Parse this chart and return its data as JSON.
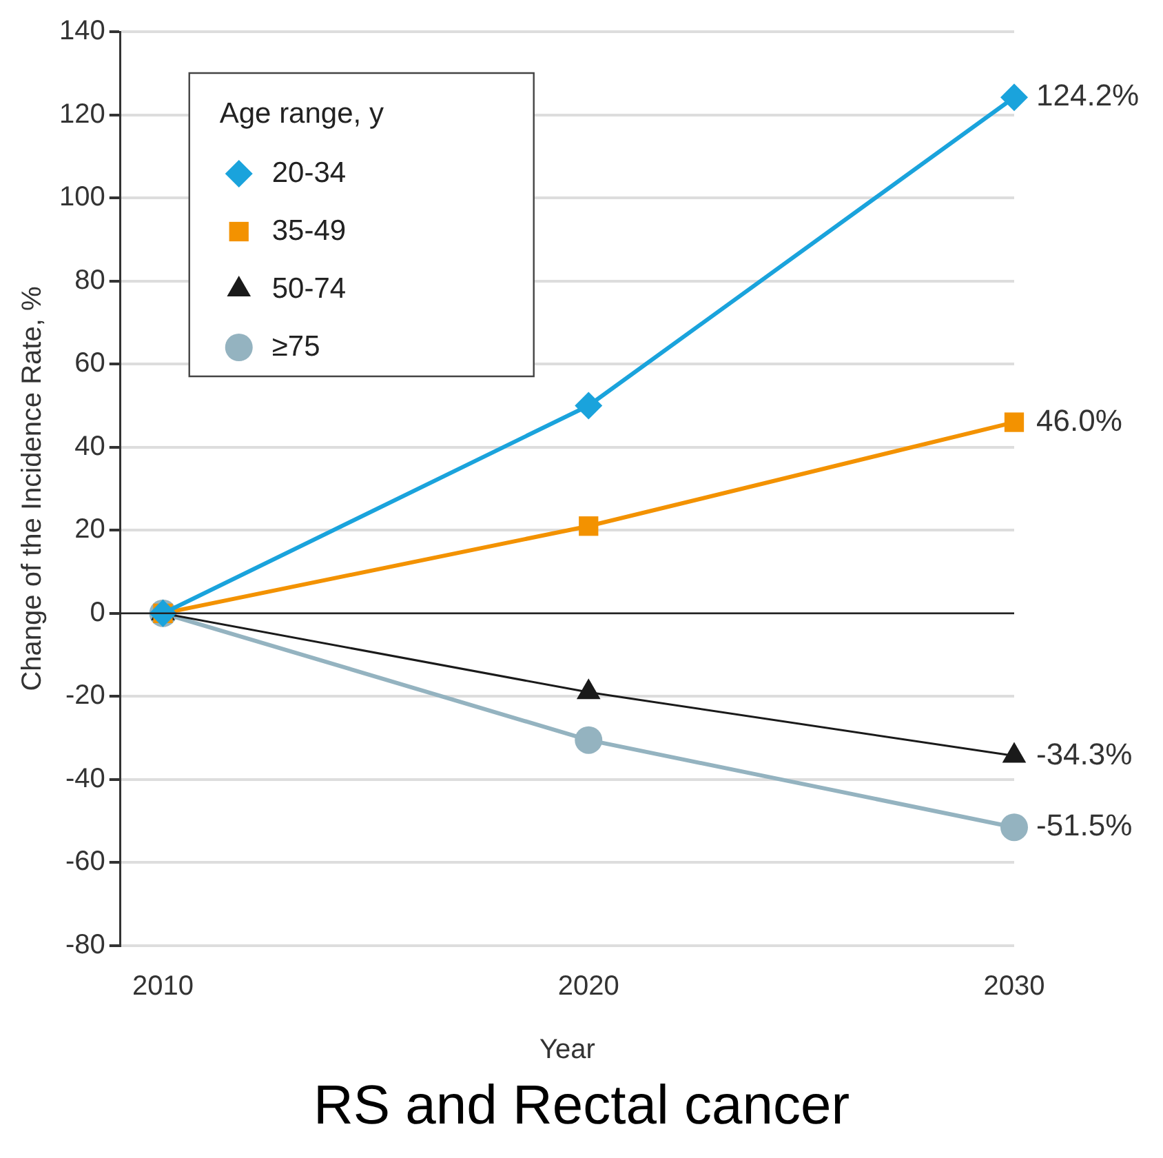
{
  "chart_data": {
    "type": "line",
    "xlabel": "Year",
    "ylabel": "Change of the Incidence Rate, %",
    "legend_title": "Age range, y",
    "annotations": [
      "RS and Rectal cancer"
    ],
    "x": [
      2010,
      2020,
      2030
    ],
    "xlim": [
      2009,
      2030
    ],
    "xticks": [
      2010,
      2020,
      2030
    ],
    "ylim": [
      -80,
      140
    ],
    "yticks": [
      -80,
      -60,
      -40,
      -20,
      0,
      20,
      40,
      60,
      80,
      100,
      120,
      140
    ],
    "grid": "y",
    "legend": "top left",
    "ref_lines": [
      {
        "axis": "y",
        "value": 0,
        "color": "#222222"
      }
    ],
    "series": [
      {
        "name": "20-34",
        "color": "#1aa3dc",
        "marker": "diamond",
        "values": [
          0,
          50,
          124.2
        ],
        "value_labels": [
          null,
          null,
          "124.2%"
        ]
      },
      {
        "name": "35-49",
        "color": "#f39200",
        "marker": "square",
        "values": [
          0,
          21,
          46.0
        ],
        "value_labels": [
          null,
          null,
          "46.0%"
        ]
      },
      {
        "name": "50-74",
        "color": "#1a1a1a",
        "marker": "triangle",
        "values": [
          0,
          -19,
          -34.3
        ],
        "value_labels": [
          null,
          null,
          "-34.3%"
        ]
      },
      {
        "name": "≥75",
        "color": "#94b3c0",
        "marker": "circle",
        "values": [
          0,
          -30.5,
          -51.5
        ],
        "value_labels": [
          null,
          null,
          "-51.5%"
        ]
      }
    ]
  }
}
